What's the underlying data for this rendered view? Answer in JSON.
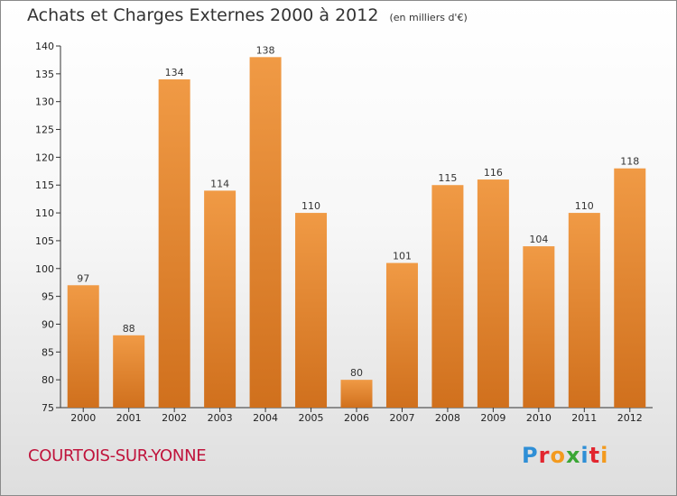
{
  "chart_data": {
    "type": "bar",
    "title": "Achats et Charges Externes 2000 à 2012",
    "subtitle": "(en milliers d'€)",
    "xlabel": "",
    "ylabel": "",
    "categories": [
      "2000",
      "2001",
      "2002",
      "2003",
      "2004",
      "2005",
      "2006",
      "2007",
      "2008",
      "2009",
      "2010",
      "2011",
      "2012"
    ],
    "values": [
      97,
      88,
      134,
      114,
      138,
      110,
      80,
      101,
      115,
      116,
      104,
      110,
      118
    ],
    "ylim": [
      75,
      140
    ],
    "yticks": [
      75,
      80,
      85,
      90,
      95,
      100,
      105,
      110,
      115,
      120,
      125,
      130,
      135,
      140
    ],
    "grid": false,
    "bar_color": "#f09a45",
    "bar_color_dark": "#d0701d"
  },
  "footer": {
    "commune": "COURTOIS-SUR-YONNE",
    "logo_letters": [
      "P",
      "r",
      "o",
      "x",
      "i",
      "t",
      "i"
    ],
    "logo_colors": [
      "#2f8fd6",
      "#e2262f",
      "#f39a1e",
      "#3aa635",
      "#2f8fd6",
      "#e2262f",
      "#f39a1e"
    ]
  }
}
